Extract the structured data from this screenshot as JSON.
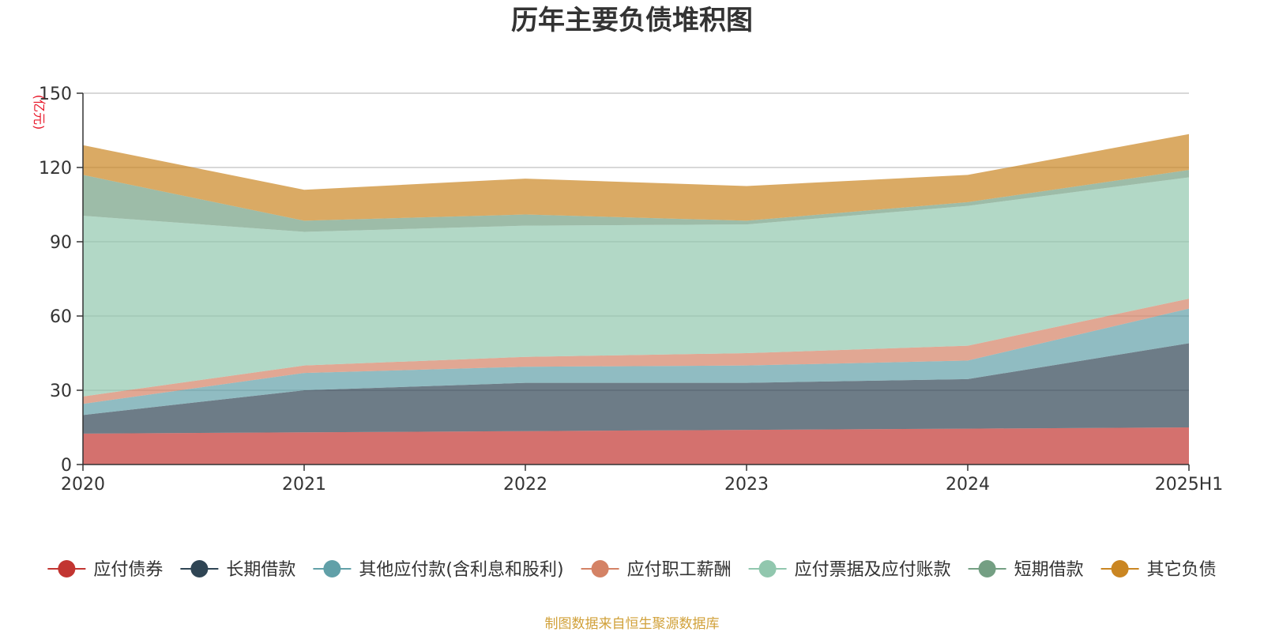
{
  "footer": {
    "source": "制图数据来自恒生聚源数据库"
  },
  "chart_data": {
    "type": "area",
    "stacked": true,
    "title": "历年主要负债堆积图",
    "y_unit": "(亿元)",
    "categories": [
      "2020",
      "2021",
      "2022",
      "2023",
      "2024",
      "2025H1"
    ],
    "ylim": [
      0,
      150
    ],
    "y_ticks": [
      0,
      30,
      60,
      90,
      120,
      150
    ],
    "grid": true,
    "legend_position": "bottom",
    "series": [
      {
        "name": "应付债券",
        "color": "#c23531",
        "values": [
          12.5,
          13.0,
          13.5,
          14.0,
          14.5,
          15.0
        ]
      },
      {
        "name": "长期借款",
        "color": "#2f4554",
        "values": [
          7.5,
          17.0,
          19.5,
          19.0,
          20.0,
          34.0
        ]
      },
      {
        "name": "其他应付款(含利息和股利)",
        "color": "#61a0a8",
        "values": [
          4.5,
          7.0,
          6.5,
          7.0,
          7.5,
          14.0
        ]
      },
      {
        "name": "应付职工薪酬",
        "color": "#d48265",
        "values": [
          3.0,
          3.0,
          4.0,
          5.0,
          6.0,
          4.0
        ]
      },
      {
        "name": "应付票据及应付账款",
        "color": "#91c7ae",
        "values": [
          73.0,
          54.0,
          53.0,
          52.0,
          56.5,
          49.0
        ]
      },
      {
        "name": "短期借款",
        "color": "#749f83",
        "values": [
          16.5,
          4.5,
          4.5,
          1.5,
          1.5,
          3.0
        ]
      },
      {
        "name": "其它负债",
        "color": "#ca8622",
        "values": [
          12.0,
          12.5,
          14.5,
          14.0,
          11.0,
          14.5
        ]
      }
    ]
  }
}
